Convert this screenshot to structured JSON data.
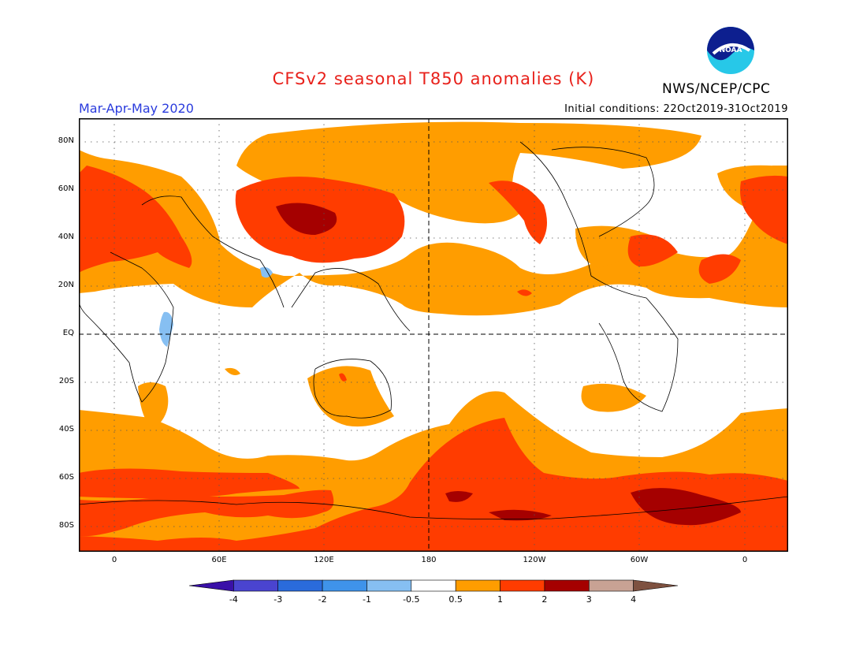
{
  "header": {
    "title": "CFSv2 seasonal T850 anomalies (K)",
    "season": "Mar-Apr-May 2020",
    "initial_conditions": "Initial conditions: 22Oct2019-31Oct2019",
    "agency": "NWS/NCEP/CPC",
    "logo_text": "NOAA"
  },
  "map": {
    "lat_labels": [
      "80N",
      "60N",
      "40N",
      "20N",
      "EQ",
      "20S",
      "40S",
      "60S",
      "80S"
    ],
    "lon_labels": [
      "0",
      "60E",
      "120E",
      "180",
      "120W",
      "60W",
      "0"
    ],
    "ocean_color": "#ffffff",
    "coast_color": "#000000"
  },
  "colorbar": {
    "labels": [
      "-4",
      "-3",
      "-2",
      "-1",
      "-0.5",
      "0.5",
      "1",
      "2",
      "3",
      "4"
    ],
    "colors": [
      "#3a10a8",
      "#4a44d0",
      "#2a6bdb",
      "#3f93ea",
      "#86bff2",
      "#ffffff",
      "#ff9d00",
      "#ff3c00",
      "#a50000",
      "#c8a294",
      "#7e5140"
    ]
  }
}
